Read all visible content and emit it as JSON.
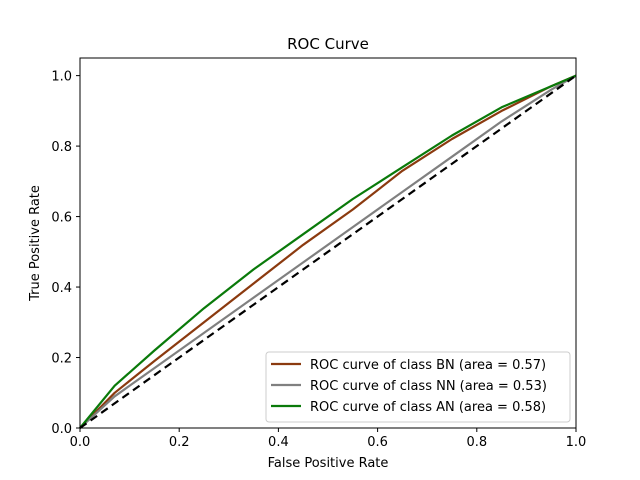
{
  "chart_data": {
    "type": "line",
    "title": "ROC Curve",
    "xlabel": "False Positive Rate",
    "ylabel": "True Positive Rate",
    "xlim": [
      0.0,
      1.0
    ],
    "ylim": [
      0.0,
      1.05
    ],
    "xticks": [
      "0.0",
      "0.2",
      "0.4",
      "0.6",
      "0.8",
      "1.0"
    ],
    "yticks": [
      "0.0",
      "0.2",
      "0.4",
      "0.6",
      "0.8",
      "1.0"
    ],
    "grid": false,
    "legend_position": "lower-right",
    "series": [
      {
        "name": "ROC curve of class BN (area = 0.57)",
        "color": "#8b3a0f",
        "x": [
          0.0,
          0.07,
          0.15,
          0.25,
          0.35,
          0.45,
          0.55,
          0.65,
          0.75,
          0.85,
          0.95,
          1.0
        ],
        "y": [
          0.0,
          0.1,
          0.19,
          0.3,
          0.41,
          0.52,
          0.62,
          0.73,
          0.82,
          0.9,
          0.97,
          1.0
        ]
      },
      {
        "name": "ROC curve of class NN (area = 0.53)",
        "color": "#808080",
        "x": [
          0.0,
          0.07,
          0.15,
          0.25,
          0.35,
          0.45,
          0.55,
          0.65,
          0.75,
          0.85,
          0.95,
          1.0
        ],
        "y": [
          0.0,
          0.09,
          0.17,
          0.27,
          0.37,
          0.47,
          0.57,
          0.67,
          0.77,
          0.87,
          0.96,
          1.0
        ]
      },
      {
        "name": "ROC curve of class AN (area = 0.58)",
        "color": "#0a7a0a",
        "x": [
          0.0,
          0.07,
          0.15,
          0.25,
          0.35,
          0.45,
          0.55,
          0.65,
          0.75,
          0.85,
          0.95,
          1.0
        ],
        "y": [
          0.0,
          0.12,
          0.22,
          0.34,
          0.45,
          0.55,
          0.65,
          0.74,
          0.83,
          0.91,
          0.97,
          1.0
        ]
      }
    ],
    "reference_line": {
      "style": "dashed",
      "color": "#000000",
      "x": [
        0.0,
        1.0
      ],
      "y": [
        0.0,
        1.0
      ]
    }
  }
}
